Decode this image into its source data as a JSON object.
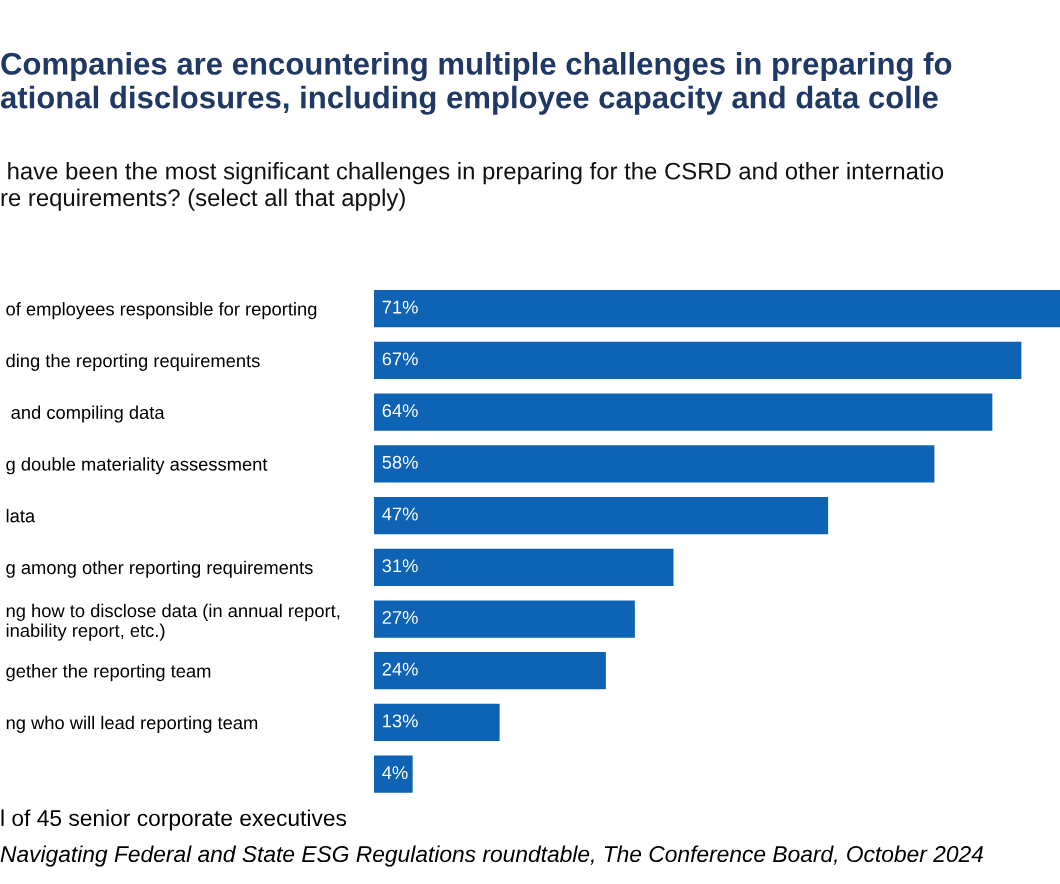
{
  "chart_data": {
    "type": "bar",
    "orientation": "horizontal",
    "title": "Companies are encountering multiple challenges in preparing fo\national disclosures, including employee capacity and data colle",
    "subtitle": " have been the most significant challenges in preparing for the CSRD and other internatio\nre requirements? (select all that apply)",
    "categories": [
      "of employees responsible for reporting",
      "ding the reporting requirements",
      " and compiling data",
      "g double materiality assessment",
      "lata",
      "g among other reporting requirements",
      "ng how to disclose data (in annual report,\ninability report, etc.)",
      "gether the reporting team",
      "ng who will lead reporting team",
      null
    ],
    "values": [
      71,
      67,
      64,
      58,
      47,
      31,
      27,
      24,
      13,
      4
    ],
    "value_labels": [
      "71%",
      "67%",
      "64%",
      "58%",
      "47%",
      "31%",
      "27%",
      "24%",
      "13%",
      "4%"
    ],
    "color": "#0e63b4",
    "tick_labels": "y",
    "grid": false,
    "legend": false,
    "annotations": [
      "l of 45 senior corporate executives",
      "Navigating Federal and State ESG Regulations roundtable, The Conference Board, October 2024"
    ]
  }
}
